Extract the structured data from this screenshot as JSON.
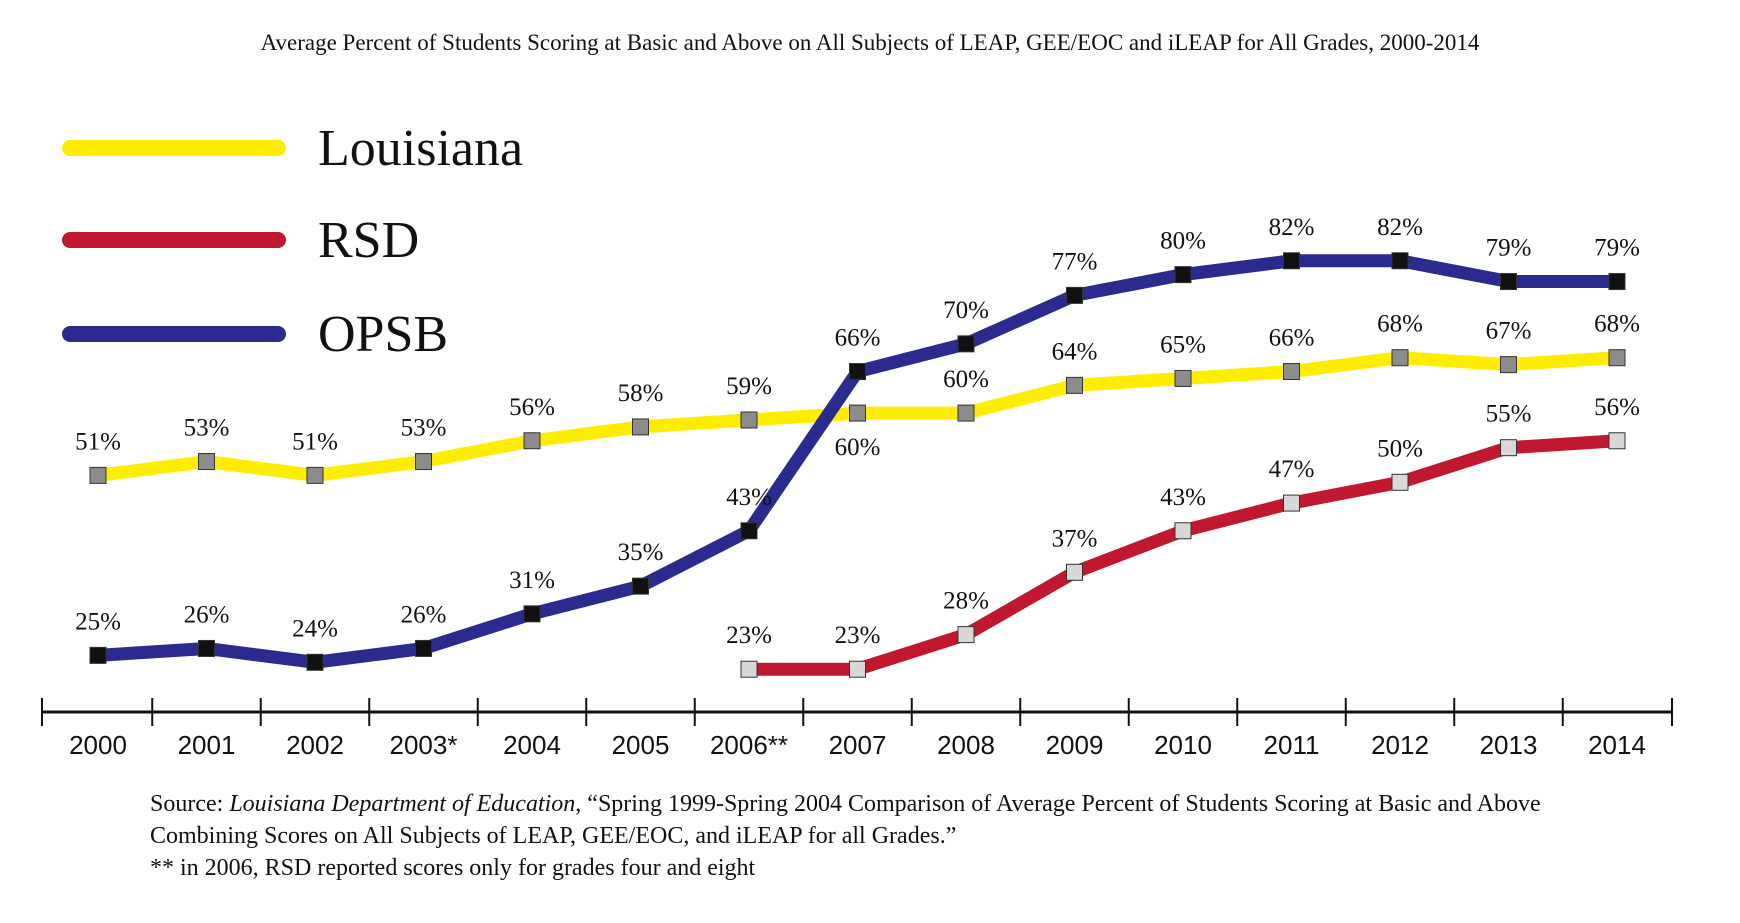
{
  "title": "Average Percent of Students Scoring at Basic and Above on All Subjects of LEAP, GEE/EOC and iLEAP for All Grades, 2000-2014",
  "source": {
    "prefix": "Source: ",
    "publisher": "Louisiana Department of Education",
    "text": ", “Spring 1999-Spring 2004 Comparison of Average Percent of Students Scoring at Basic and Above Combining Scores on All Subjects of LEAP, GEE/EOC, and iLEAP for all Grades.”",
    "note": "** in 2006, RSD reported scores only for grades four and eight"
  },
  "chart_data": {
    "type": "line",
    "title": "Average Percent of Students Scoring at Basic and Above on All Subjects of LEAP, GEE/EOC and iLEAP for All Grades, 2000-2014",
    "categories": [
      "2000",
      "2001",
      "2002",
      "2003*",
      "2004",
      "2005",
      "2006**",
      "2007",
      "2008",
      "2009",
      "2010",
      "2011",
      "2012",
      "2013",
      "2014"
    ],
    "ylim": [
      20,
      85
    ],
    "grid": false,
    "legend_position": "top-left",
    "series": [
      {
        "name": "Louisiana",
        "color": "#ffed00",
        "marker_color": "#8c8c8c",
        "values": [
          51,
          53,
          51,
          53,
          56,
          58,
          59,
          60,
          60,
          64,
          65,
          66,
          68,
          67,
          68
        ],
        "labels": [
          "51%",
          "53%",
          "51%",
          "53%",
          "56%",
          "58%",
          "59%",
          "60%",
          "60%",
          "64%",
          "65%",
          "66%",
          "68%",
          "67%",
          "68%"
        ]
      },
      {
        "name": "RSD",
        "color": "#c0182f",
        "marker_color": "#d8d8d8",
        "values": [
          null,
          null,
          null,
          null,
          null,
          null,
          23,
          23,
          28,
          37,
          43,
          47,
          50,
          55,
          56
        ],
        "labels": [
          null,
          null,
          null,
          null,
          null,
          null,
          "23%",
          "23%",
          "28%",
          "37%",
          "43%",
          "47%",
          "50%",
          "55%",
          "56%"
        ]
      },
      {
        "name": "OPSB",
        "color": "#2b2b8f",
        "marker_color": "#111111",
        "values": [
          25,
          26,
          24,
          26,
          31,
          35,
          43,
          66,
          70,
          77,
          80,
          82,
          82,
          79,
          79
        ],
        "labels": [
          "25%",
          "26%",
          "24%",
          "26%",
          "31%",
          "35%",
          "43%",
          "66%",
          "70%",
          "77%",
          "80%",
          "82%",
          "82%",
          "79%",
          "79%"
        ]
      }
    ]
  }
}
